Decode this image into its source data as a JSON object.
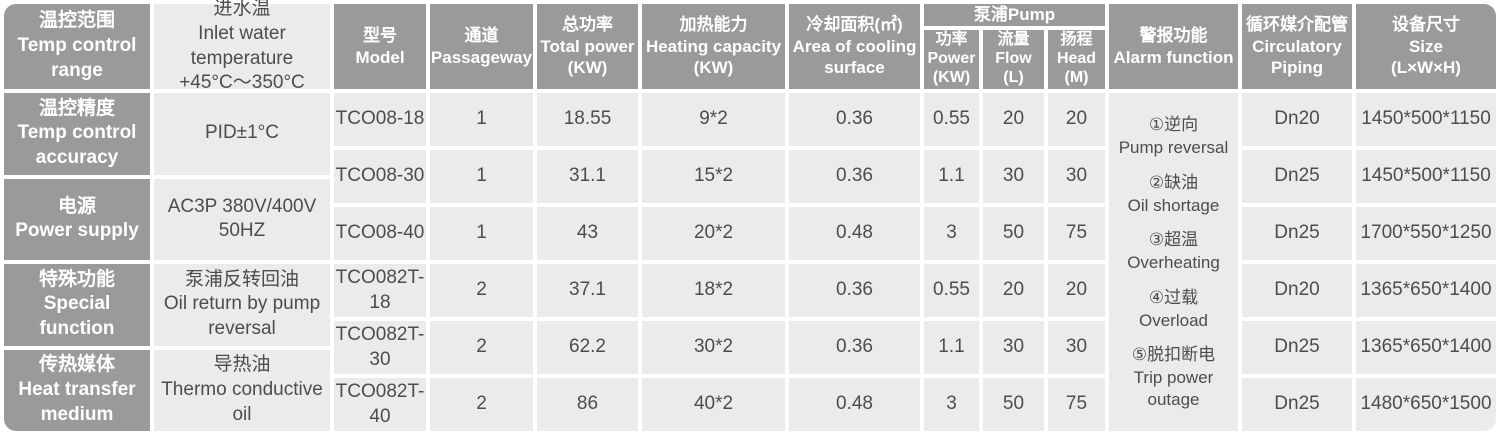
{
  "palette": {
    "header_bg": "#9a9a9a",
    "cell_bg": "#ebebeb",
    "header_text": "#ffffff",
    "cell_text": "#4d4d4d",
    "page_bg": "#ffffff"
  },
  "left_panel": {
    "rows": [
      {
        "label": "温控范围\nTemp control\nrange",
        "value": "进水温\nInlet water temperature\n+45°C～350°C"
      },
      {
        "label": "温控精度\nTemp control\naccuracy",
        "value": "PID±1°C"
      },
      {
        "label": "电源\nPower supply",
        "value": "AC3P 380V/400V 50HZ"
      },
      {
        "label": "特殊功能\nSpecial function",
        "value": "泵浦反转回油\nOil return by pump\nreversal"
      },
      {
        "label": "传热媒体\nHeat transfer\nmedium",
        "value": "导热油\nThermo conductive oil"
      }
    ]
  },
  "table": {
    "headers": {
      "model": "型号\nModel",
      "passageway": "通道\nPassageway",
      "total_power": "总功率\nTotal power\n(KW)",
      "heating_capacity": "加热能力\nHeating capacity\n(KW)",
      "cooling_area": "冷却面积(㎡)\nArea of cooling\nsurface",
      "pump_group": "泵浦Pump",
      "pump_power": "功率\nPower\n(KW)",
      "pump_flow": "流量\nFlow\n(L)",
      "pump_head": "扬程\nHead\n(M)",
      "alarm": "警报功能\nAlarm function",
      "piping": "循环媒介配管\nCirculatory\nPiping",
      "size": "设备尺寸\nSize\n(L×W×H)"
    },
    "rows": [
      {
        "model": "TCO08-18",
        "passageway": "1",
        "total_power": "18.55",
        "heating_capacity": "9*2",
        "cooling_area": "0.36",
        "pump_power": "0.55",
        "pump_flow": "20",
        "pump_head": "20",
        "piping": "Dn20",
        "size": "1450*500*1150"
      },
      {
        "model": "TCO08-30",
        "passageway": "1",
        "total_power": "31.1",
        "heating_capacity": "15*2",
        "cooling_area": "0.36",
        "pump_power": "1.1",
        "pump_flow": "30",
        "pump_head": "30",
        "piping": "Dn25",
        "size": "1450*500*1150"
      },
      {
        "model": "TCO08-40",
        "passageway": "1",
        "total_power": "43",
        "heating_capacity": "20*2",
        "cooling_area": "0.48",
        "pump_power": "3",
        "pump_flow": "50",
        "pump_head": "75",
        "piping": "Dn25",
        "size": "1700*550*1250"
      },
      {
        "model": "TCO082T-18",
        "passageway": "2",
        "total_power": "37.1",
        "heating_capacity": "18*2",
        "cooling_area": "0.36",
        "pump_power": "0.55",
        "pump_flow": "20",
        "pump_head": "20",
        "piping": "Dn20",
        "size": "1365*650*1400"
      },
      {
        "model": "TCO082T-30",
        "passageway": "2",
        "total_power": "62.2",
        "heating_capacity": "30*2",
        "cooling_area": "0.36",
        "pump_power": "1.1",
        "pump_flow": "30",
        "pump_head": "30",
        "piping": "Dn25",
        "size": "1365*650*1400"
      },
      {
        "model": "TCO082T-40",
        "passageway": "2",
        "total_power": "86",
        "heating_capacity": "40*2",
        "cooling_area": "0.48",
        "pump_power": "3",
        "pump_flow": "50",
        "pump_head": "75",
        "piping": "Dn25",
        "size": "1480*650*1500"
      }
    ],
    "alarm_items": [
      {
        "zh": "①逆向",
        "en": "Pump reversal"
      },
      {
        "zh": "②缺油",
        "en": "Oil shortage"
      },
      {
        "zh": "③超温",
        "en": "Overheating"
      },
      {
        "zh": "④过载",
        "en": "Overload"
      },
      {
        "zh": "⑤脱扣断电",
        "en": "Trip power outage"
      }
    ]
  }
}
